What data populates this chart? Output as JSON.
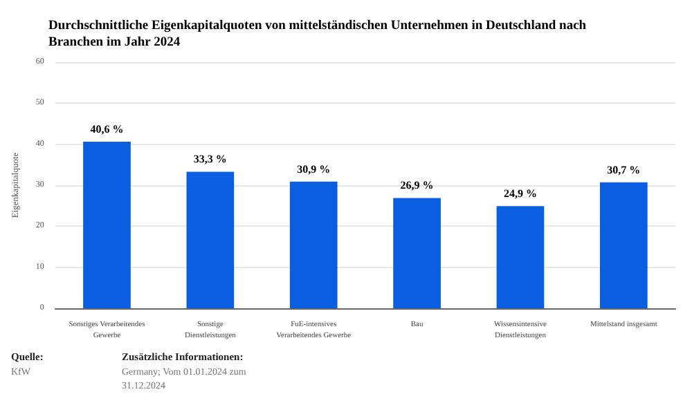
{
  "chart_data": {
    "type": "bar",
    "title": "Durchschnittliche Eigenkapitalquoten von mittelständischen Unternehmen in Deutschland nach Branchen im Jahr 2024",
    "ylabel": "Eigenkapitalquote",
    "categories": [
      "Sonstiges Verarbeitendes Gewerbe",
      "Sonstige Dienstleistungen",
      "FuE-intensives Verarbeitendes Gewerbe",
      "Bau",
      "Wissensintensive Dienstleistungen",
      "Mittelstand insgesamt"
    ],
    "values": [
      40.6,
      33.3,
      30.9,
      26.9,
      24.9,
      30.7
    ],
    "value_labels": [
      "40,6 %",
      "33,3 %",
      "30,9 %",
      "26,9 %",
      "24,9 %",
      "30,7 %"
    ],
    "color": "#0b5ee0",
    "ylim": [
      0,
      60
    ],
    "yticks": [
      0,
      10,
      20,
      30,
      40,
      50,
      60
    ],
    "grid": "y",
    "annotations": [
      "Quelle:",
      "KfW",
      "Zusätzliche Informationen:",
      "Germany; Vom 01.01.2024 zum 31.12.2024"
    ]
  }
}
